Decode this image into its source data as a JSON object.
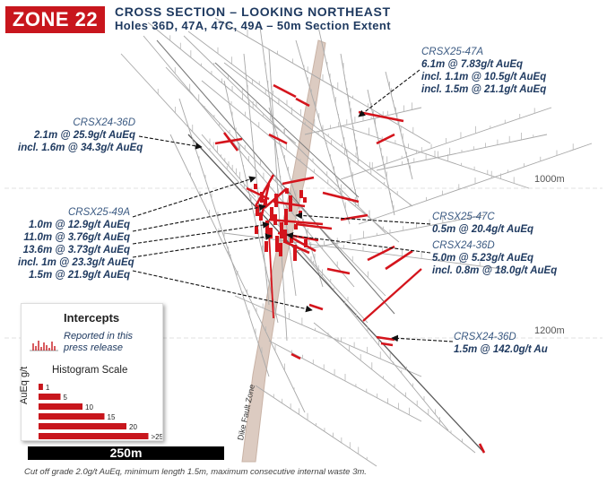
{
  "zone": "ZONE 22",
  "title": "CROSS SECTION – LOOKING NORTHEAST",
  "subtitle": "Holes 36D, 47A, 47C, 49A – 50m Section Extent",
  "depth_labels": [
    "1000m",
    "1200m"
  ],
  "fault_label": "Dike Fault Zone",
  "annotations": {
    "h47a": {
      "hole": "CRSX25-47A",
      "lines": [
        "6.1m @ 7.83g/t AuEq",
        "incl. 1.1m @ 10.5g/t AuEq",
        "incl. 1.5m @ 21.1g/t AuEq"
      ]
    },
    "h36d_top": {
      "hole": "CRSX24-36D",
      "lines": [
        "2.1m @ 25.9g/t AuEq",
        "incl. 1.6m @ 34.3g/t AuEq"
      ]
    },
    "h49a": {
      "hole": "CRSX25-49A",
      "lines": [
        "1.0m @ 12.9g/t AuEq",
        "11.0m @ 3.76g/t AuEq",
        "13.6m @ 3.73g/t AuEq",
        "incl. 1m @ 23.3g/t AuEq",
        "1.5m @ 21.9g/t AuEq"
      ]
    },
    "h47c": {
      "hole": "CRSX25-47C",
      "lines": [
        "0.5m @ 20.4g/t AuEq"
      ]
    },
    "h36d_mid": {
      "hole": "CRSX24-36D",
      "lines": [
        "5.0m @ 5.23g/t AuEq",
        "incl. 0.8m @ 18.0g/t AuEq"
      ]
    },
    "h36d_low": {
      "hole": "CRSX24-36D",
      "lines": [
        "1.5m @ 142.0g/t Au"
      ]
    }
  },
  "legend": {
    "title": "Intercepts",
    "reported": "Reported in this press release",
    "histogram_title": "Histogram Scale",
    "unit": "AuEq g/t",
    "scale_values": [
      "1",
      "5",
      "10",
      "15",
      "20",
      ">25"
    ]
  },
  "scale_bar": "250m",
  "footnote": "Cut off grade 2.0g/t AuEq, minimum length 1.5m, maximum consecutive internal waste 3m.",
  "colors": {
    "accent": "#c8161d",
    "navy": "#1f3a60",
    "drill": "#9a9a9a",
    "fault": "#d9c7bd"
  }
}
